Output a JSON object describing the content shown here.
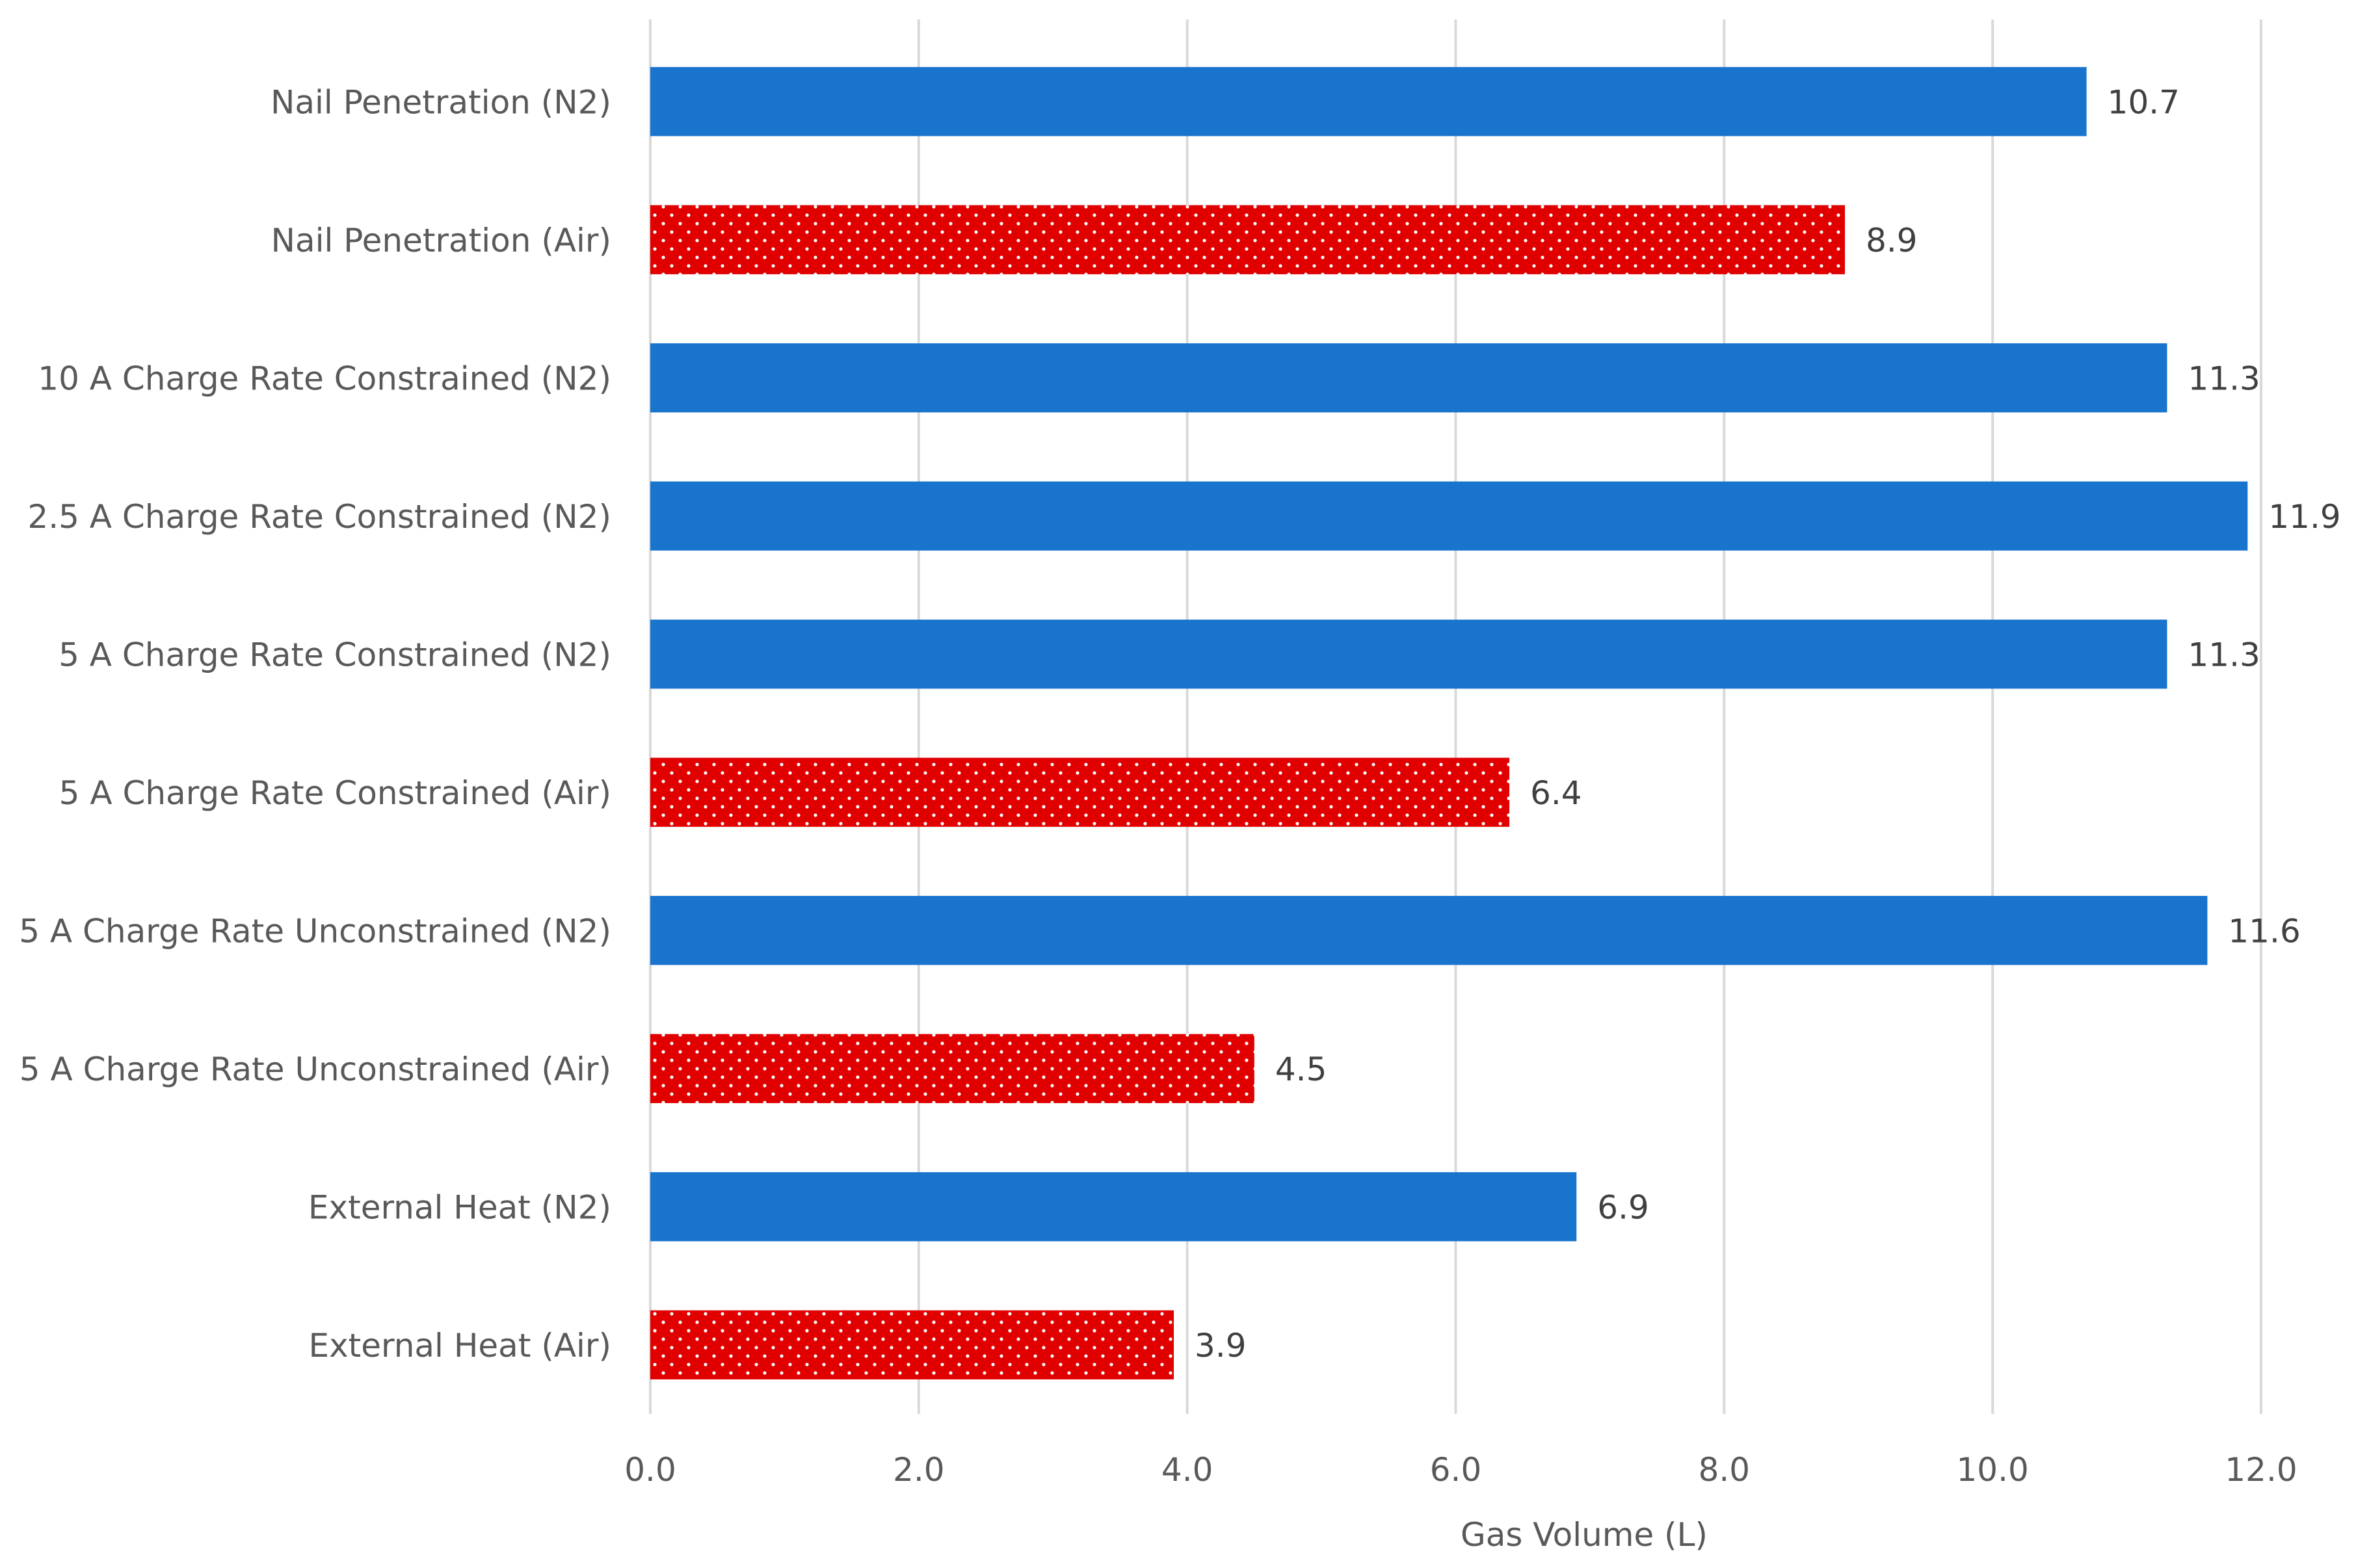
{
  "chart_data": {
    "type": "bar",
    "orientation": "horizontal",
    "title": "",
    "xlabel": "Gas Volume (L)",
    "ylabel": "",
    "xlim": [
      0,
      12
    ],
    "x_ticks": [
      "0.0",
      "2.0",
      "4.0",
      "6.0",
      "8.0",
      "10.0",
      "12.0"
    ],
    "grid": true,
    "legend": "none",
    "categories": [
      "Nail Penetration (N2)",
      "Nail Penetration (Air)",
      "10 A Charge Rate Constrained (N2)",
      "2.5 A Charge Rate Constrained (N2)",
      "5 A Charge Rate Constrained (N2)",
      "5 A Charge Rate Constrained (Air)",
      "5 A Charge Rate Unconstrained (N2)",
      "5 A Charge Rate Unconstrained (Air)",
      "External Heat (N2)",
      "External Heat (Air)"
    ],
    "values": [
      10.7,
      8.9,
      11.3,
      11.9,
      11.3,
      6.4,
      11.6,
      4.5,
      6.9,
      3.9
    ],
    "value_labels": [
      "10.7",
      "8.9",
      "11.3",
      "11.9",
      "11.3",
      "6.4",
      "11.6",
      "4.5",
      "6.9",
      "3.9"
    ],
    "atmosphere": [
      "N2",
      "Air",
      "N2",
      "N2",
      "N2",
      "Air",
      "N2",
      "Air",
      "N2",
      "Air"
    ],
    "colors": {
      "N2": "#1874CD",
      "Air": "#E00000",
      "dots": "#ffffff"
    }
  }
}
